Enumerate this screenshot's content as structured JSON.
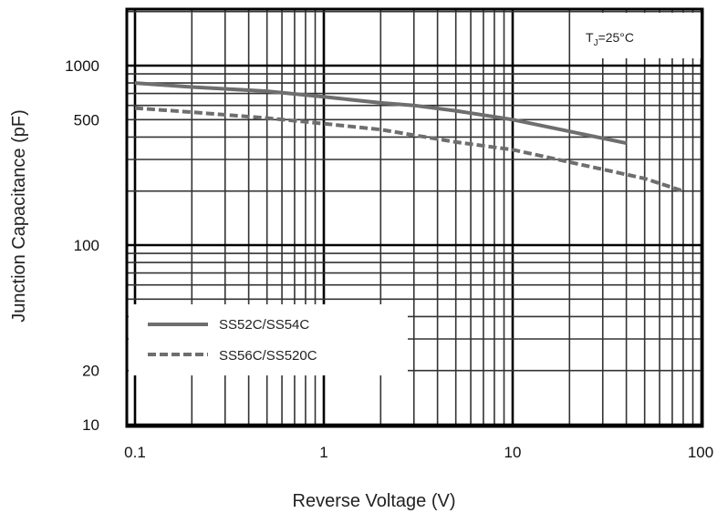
{
  "chart_data": {
    "type": "line",
    "title": "",
    "xlabel": "Reverse  Voltage (V)",
    "ylabel": "Junction Capacitance (pF)",
    "x_scale": "log",
    "y_scale": "log",
    "xlim": [
      0.1,
      100
    ],
    "ylim": [
      10,
      2000
    ],
    "x_tick_labels": [
      {
        "value": 0.1,
        "label": "0.1"
      },
      {
        "value": 1,
        "label": "1"
      },
      {
        "value": 10,
        "label": "10"
      },
      {
        "value": 100,
        "label": "100"
      }
    ],
    "y_tick_labels": [
      {
        "value": 10,
        "label": "10"
      },
      {
        "value": 20,
        "label": "20"
      },
      {
        "value": 100,
        "label": "100"
      },
      {
        "value": 500,
        "label": "500"
      },
      {
        "value": 1000,
        "label": "1000"
      }
    ],
    "grid": true,
    "annotation": {
      "base": "T",
      "sub": "J",
      "rest": "=25°C"
    },
    "legend_position": "bottom-left",
    "series": [
      {
        "name": "SS52C/SS54C",
        "style": "solid",
        "color": "#6e6e6e",
        "x": [
          0.1,
          0.2,
          0.5,
          1,
          2,
          3,
          5,
          10,
          20,
          40
        ],
        "y": [
          800,
          760,
          720,
          670,
          620,
          600,
          560,
          500,
          430,
          370
        ]
      },
      {
        "name": "SS56C/SS520C",
        "style": "dashed",
        "color": "#6e6e6e",
        "x": [
          0.1,
          0.2,
          0.5,
          1,
          2,
          3,
          5,
          10,
          20,
          50,
          80
        ],
        "y": [
          580,
          550,
          510,
          475,
          440,
          410,
          375,
          340,
          290,
          235,
          200
        ]
      }
    ]
  }
}
